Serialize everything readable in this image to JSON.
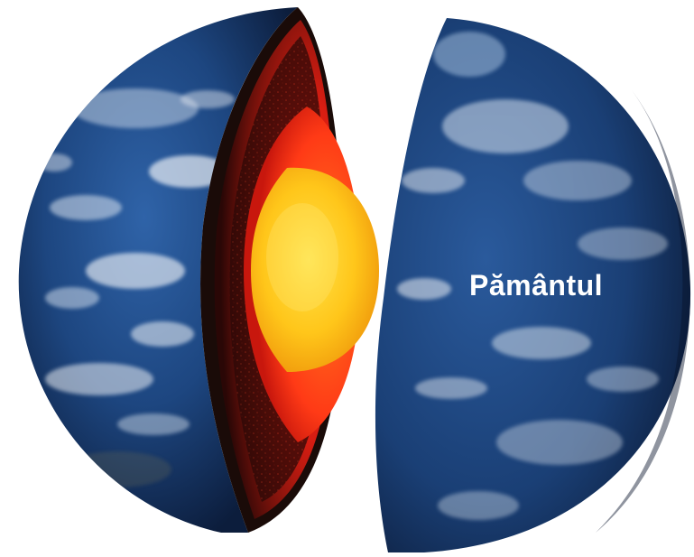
{
  "label": "Pământul",
  "colors": {
    "ocean_deep": "#0f2447",
    "ocean_mid": "#1f4a86",
    "cloud": "#e8eef5",
    "crust_edge": "#1a0b08",
    "mantle_outer": "#5a0f0a",
    "mantle_inner": "#e8261a",
    "outer_core": "#ff5a1a",
    "inner_core": "#ffd21e"
  },
  "icons": {
    "earth": "earth-cutaway-illustration"
  }
}
